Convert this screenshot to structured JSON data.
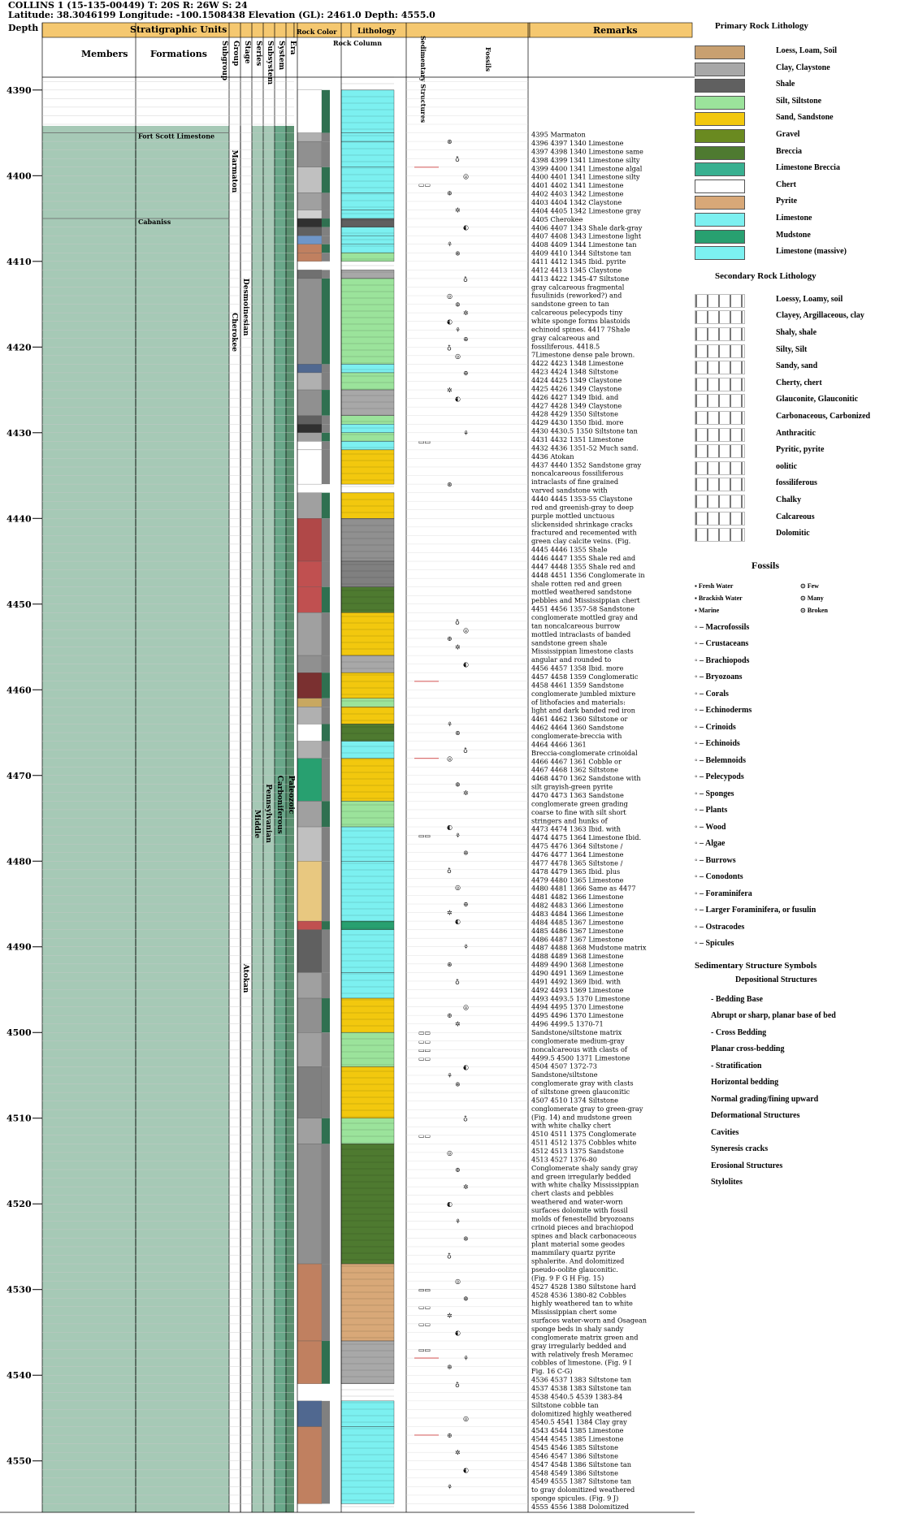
{
  "well": {
    "title": "COLLINS 1 (15-135-00449) T: 20S R: 26W S: 24",
    "location": "Latitude: 38.3046199 Longitude: -100.1508438 Elevation (GL): 2461.0 Depth: 4555.0"
  },
  "headers": {
    "depth": "Depth",
    "strat_units": "Stratigraphic Units",
    "members": "Members",
    "formations": "Formations",
    "rank_cols": [
      "Subgroup",
      "Group",
      "Stage",
      "Series",
      "Subsystem",
      "System",
      "Era"
    ],
    "lithology": "Lithology",
    "rock_color": "Rock Color",
    "rock_column": "Rock Column",
    "sed_structures": "Sedimentary Structures",
    "fossils": "Fossils",
    "remarks": "Remarks"
  },
  "depth_ticks": [
    "4390",
    "4400",
    "4410",
    "4420",
    "4430",
    "4440",
    "4450",
    "4460",
    "4470",
    "4480",
    "4490",
    "4500",
    "4510",
    "4520",
    "4530",
    "4540",
    "4550"
  ],
  "strat": {
    "formations": [
      "Fort Scott Limestone",
      "Cabaniss"
    ],
    "units": [
      "Marmaton",
      "Cherokee",
      "Desmoinesian",
      "Atokan",
      "Middle",
      "Pennsylvanian",
      "Carboniferous",
      "Paleozoic"
    ]
  },
  "remarks": [
    "4395 Marmaton",
    "4396 4397 1340 Limestone",
    "4397 4398 1340 Limestone same",
    "4398 4399 1341 Limestone silty",
    "4399 4400 1341 Limestone algal",
    "4400 4401 1341 Limestone silty",
    "4401 4402 1341 Limestone",
    "4402 4403 1342 Limestone",
    "4403 4404 1342 Claystone",
    "4404 4405 1342 Limestone gray",
    "4405 Cherokee",
    "4406 4407 1343 Shale dark-gray",
    "4407 4408 1343 Limestone light",
    "4408 4409 1344 Limestone tan",
    "4409 4410 1344 Siltstone tan",
    "4411 4412 1345 Ibid. pyrite",
    "4412 4413 1345 Claystone",
    "4413 4422 1345-47 Siltstone",
    "gray calcareous fragmental",
    "fusulinids (reworked?) and",
    "sandstone green to tan",
    "calcareous pelecypods tiny",
    "white sponge forms blastoids",
    "echinoid spines. 4417 7Shale",
    "gray calcareous and",
    "fossiliferous. 4418.5",
    "7Limestone dense pale brown.",
    "4422 4423 1348 Limestone",
    "4423 4424 1348 Siltstone",
    "4424 4425 1349 Claystone",
    "4425 4426 1349 Claystone",
    "4426 4427 1349 Ibid. and",
    "4427 4428 1349 Claystone",
    "4428 4429 1350 Siltstone",
    "4429 4430 1350 Ibid. more",
    "4430 4430.5 1350 Siltstone tan",
    "4431 4432 1351 Limestone",
    "4432 4436 1351-52 Much sand.",
    "4436 Atokan",
    "4437 4440 1352 Sandstone gray",
    "noncalcareous fossiliferous",
    "intraclasts of fine grained",
    "varved sandstone with",
    "4440 4445 1353-55 Claystone",
    "red and greenish-gray to deep",
    "purple mottled unctuous",
    "slickensided shrinkage cracks",
    "fractured and recemented with",
    "green clay calcite veins. (Fig.",
    "4445 4446 1355 Shale",
    "4446 4447 1355 Shale red and",
    "4447 4448 1355 Shale red and",
    "4448 4451 1356 Conglomerate in",
    "shale rotten red and green",
    "mottled weathered sandstone",
    "pebbles and Mississippian chert",
    "4451 4456 1357-58 Sandstone",
    "conglomerate mottled gray and",
    "tan noncalcareous burrow",
    "mottled intraclasts of banded",
    "sandstone green shale",
    "Mississippian limestone clasts",
    "angular and rounded to",
    "4456 4457 1358 Ibid. more",
    "4457 4458 1359 Conglomeratic",
    "4458 4461 1359 Sandstone",
    "conglomerate jumbled mixture",
    "of lithofacies and materials:",
    "light and dark banded red iron",
    "4461 4462 1360 Siltstone or",
    "4462 4464 1360 Sandstone",
    "conglomerate-breccia with",
    "4464 4466 1361",
    "Breccia-conglomerate crinoidal",
    "4466 4467 1361 Cobble or",
    "4467 4468 1362 Siltstone",
    "4468 4470 1362 Sandstone with",
    "silt grayish-green pyrite",
    "4470 4473 1363 Sandstone",
    "conglomerate green grading",
    "coarse to fine with silt short",
    "stringers and hunks of",
    "4473 4474 1363 Ibid. with",
    "4474 4475 1364 Limestone Ibid.",
    "4475 4476 1364 Siltstone /",
    "4476 4477 1364 Limestone",
    "4477 4478 1365 Siltstone /",
    "4478 4479 1365 Ibid. plus",
    "4479 4480 1365 Limestone",
    "4480 4481 1366 Same as 4477",
    "4481 4482 1366 Limestone",
    "4482 4483 1366 Limestone",
    "4483 4484 1366 Limestone",
    "4484 4485 1367 Limestone",
    "4485 4486 1367 Limestone",
    "4486 4487 1367 Limestone",
    "4487 4488 1368 Mudstone matrix",
    "4488 4489 1368 Limestone",
    "4489 4490 1368 Limestone",
    "4490 4491 1369 Limestone",
    "4491 4492 1369 Ibid. with",
    "4492 4493 1369 Limestone",
    "4493 4493.5 1370 Limestone",
    "4494 4495 1370 Limestone",
    "4495 4496 1370 Limestone",
    "4496 4499.5 1370-71",
    "Sandstone/siltstone matrix",
    "conglomerate medium-gray",
    "noncalcareous with clasts of",
    "4499.5 4500 1371 Limestone",
    "4504 4507 1372-73",
    "Sandstone/siltstone",
    "conglomerate gray with clasts",
    "of siltstone green glauconitic",
    "4507 4510 1374 Siltstone",
    "conglomerate gray to green-gray",
    "(Fig. 14) and mudstone green",
    "with white chalky chert",
    "4510 4511 1375 Conglomerate",
    "4511 4512 1375 Cobbles white",
    "4512 4513 1375 Sandstone",
    "4513 4527 1376-80",
    "Conglomerate shaly sandy gray",
    "and green irregularly bedded",
    "with white chalky Mississippian",
    "chert clasts and pebbles",
    "weathered and water-worn",
    "surfaces dolomite with fossil",
    "molds of fenestellid bryozoans",
    "crinoid pieces and brachiopod",
    "spines and black carbonaceous",
    "plant material some geodes",
    "mammilary quartz pyrite",
    "sphalerite. And dolomitized",
    "pseudo-oolite glauconitic.",
    "(Fig. 9 F G H Fig. 15)",
    "4527 4528 1380 Siltstone hard",
    "4528 4536 1380-82 Cobbles",
    "highly weathered tan to white",
    "Mississippian chert some",
    "surfaces water-worn and Osagean",
    "sponge beds in shaly sandy",
    "conglomerate matrix green and",
    "gray irregularly bedded and",
    "with relatively fresh Meramec",
    "cobbles of limestone. (Fig. 9 I",
    "Fig. 16 C-G)",
    "4536 4537 1383 Siltstone tan",
    "4537 4538 1383 Siltstone tan",
    "4538 4540.5 4539 1383-84",
    "Siltstone cobble tan",
    "dolomitized highly weathered",
    "4540.5 4541 1384 Clay gray",
    "4543 4544 1385 Limestone",
    "4544 4545 1385 Limestone",
    "4545 4546 1385 Siltstone",
    "4546 4547 1386 Siltstone",
    "4547 4548 1386 Siltstone tan",
    "4548 4549 1386 Siltstone",
    "4549 4555 1387 Siltstone tan",
    "to gray dolomitized weathered",
    "sponge spicules. (Fig. 9 J)",
    "4555 4556 1388 Dolomitized"
  ],
  "legend": {
    "primary_title": "Primary Rock Lithology",
    "primary": [
      {
        "label": "Loess, Loam, Soil",
        "color": "#c8a070"
      },
      {
        "label": "Clay, Claystone",
        "color": "#a8a8a8"
      },
      {
        "label": "Shale",
        "color": "#606060"
      },
      {
        "label": "Silt, Siltstone",
        "color": "#9be39b"
      },
      {
        "label": "Sand, Sandstone",
        "color": "#f2c80e"
      },
      {
        "label": "Gravel",
        "color": "#6a8a20"
      },
      {
        "label": "Breccia",
        "color": "#4e7a30"
      },
      {
        "label": "Limestone Breccia",
        "color": "#38b090"
      },
      {
        "label": "Chert",
        "color": "#ffffff"
      },
      {
        "label": "Pyrite",
        "color": "#d8a878"
      },
      {
        "label": "Limestone",
        "color": "#7cf0f0"
      },
      {
        "label": "Mudstone",
        "color": "#28a070"
      },
      {
        "label": "Limestone (massive)",
        "color": "#7cf0f0"
      }
    ],
    "secondary_title": "Secondary Rock Lithology",
    "secondary": [
      {
        "label": "Loessy, Loamy, soil",
        "color": "#ffffff"
      },
      {
        "label": "Clayey, Argillaceous, clay",
        "color": "#ffffff"
      },
      {
        "label": "Shaly, shale",
        "color": "#ffffff"
      },
      {
        "label": "Silty, Silt",
        "color": "#ffffff"
      },
      {
        "label": "Sandy, sand",
        "color": "#ffffff"
      },
      {
        "label": "Cherty, chert",
        "color": "#ffffff"
      },
      {
        "label": "Glauconite, Glauconitic",
        "color": "#ffffff"
      },
      {
        "label": "Carbonaceous, Carbonized",
        "color": "#ffffff"
      },
      {
        "label": "Anthracitic",
        "color": "#ffffff"
      },
      {
        "label": "Pyritic, pyrite",
        "color": "#ffffff"
      },
      {
        "label": "oolitic",
        "color": "#ffffff"
      },
      {
        "label": "fossiliferous",
        "color": "#ffffff"
      },
      {
        "label": "Chalky",
        "color": "#ffffff"
      },
      {
        "label": "Calcareous",
        "color": "#ffffff"
      },
      {
        "label": "Dolomitic",
        "color": "#ffffff"
      }
    ],
    "fossils_title": "Fossils",
    "fossil_env": [
      "Fresh Water",
      "Brackish Water",
      "Marine"
    ],
    "fossil_abund": [
      "Few",
      "Many",
      "Broken"
    ],
    "fossils": [
      "– Macrofossils",
      "– Crustaceans",
      "– Brachiopods",
      "– Bryozoans",
      "– Corals",
      "– Echinoderms",
      "– Crinoids",
      "– Echinoids",
      "– Belemnoids",
      "– Pelecypods",
      "– Sponges",
      "– Plants",
      "– Wood",
      "– Algae",
      "– Burrows",
      "– Conodonts",
      "– Foraminifera",
      "– Larger Foraminifera, or fusulin",
      "– Ostracodes",
      "– Spicules"
    ],
    "sed_title": "Sedimentary Structure Symbols",
    "dep_title": "Depositional Structures",
    "sed_items": [
      "- Bedding Base",
      "Abrupt or sharp, planar base of bed",
      "- Cross Bedding",
      "Planar cross-bedding",
      "- Stratification",
      "Horizontal bedding",
      "Normal grading/fining upward",
      "Deformational Structures",
      "Cavities",
      "Syneresis cracks",
      "Erosional Structures",
      "Stylolites"
    ]
  },
  "colors": {
    "header_fill": "#f5c870",
    "strat_fill": "#a6c9b6",
    "limestone": "#7cf0f0",
    "sand": "#f2c80e",
    "silt": "#9be39b",
    "shale": "#606060",
    "mudstone": "#28a070",
    "red": "#b04848"
  }
}
